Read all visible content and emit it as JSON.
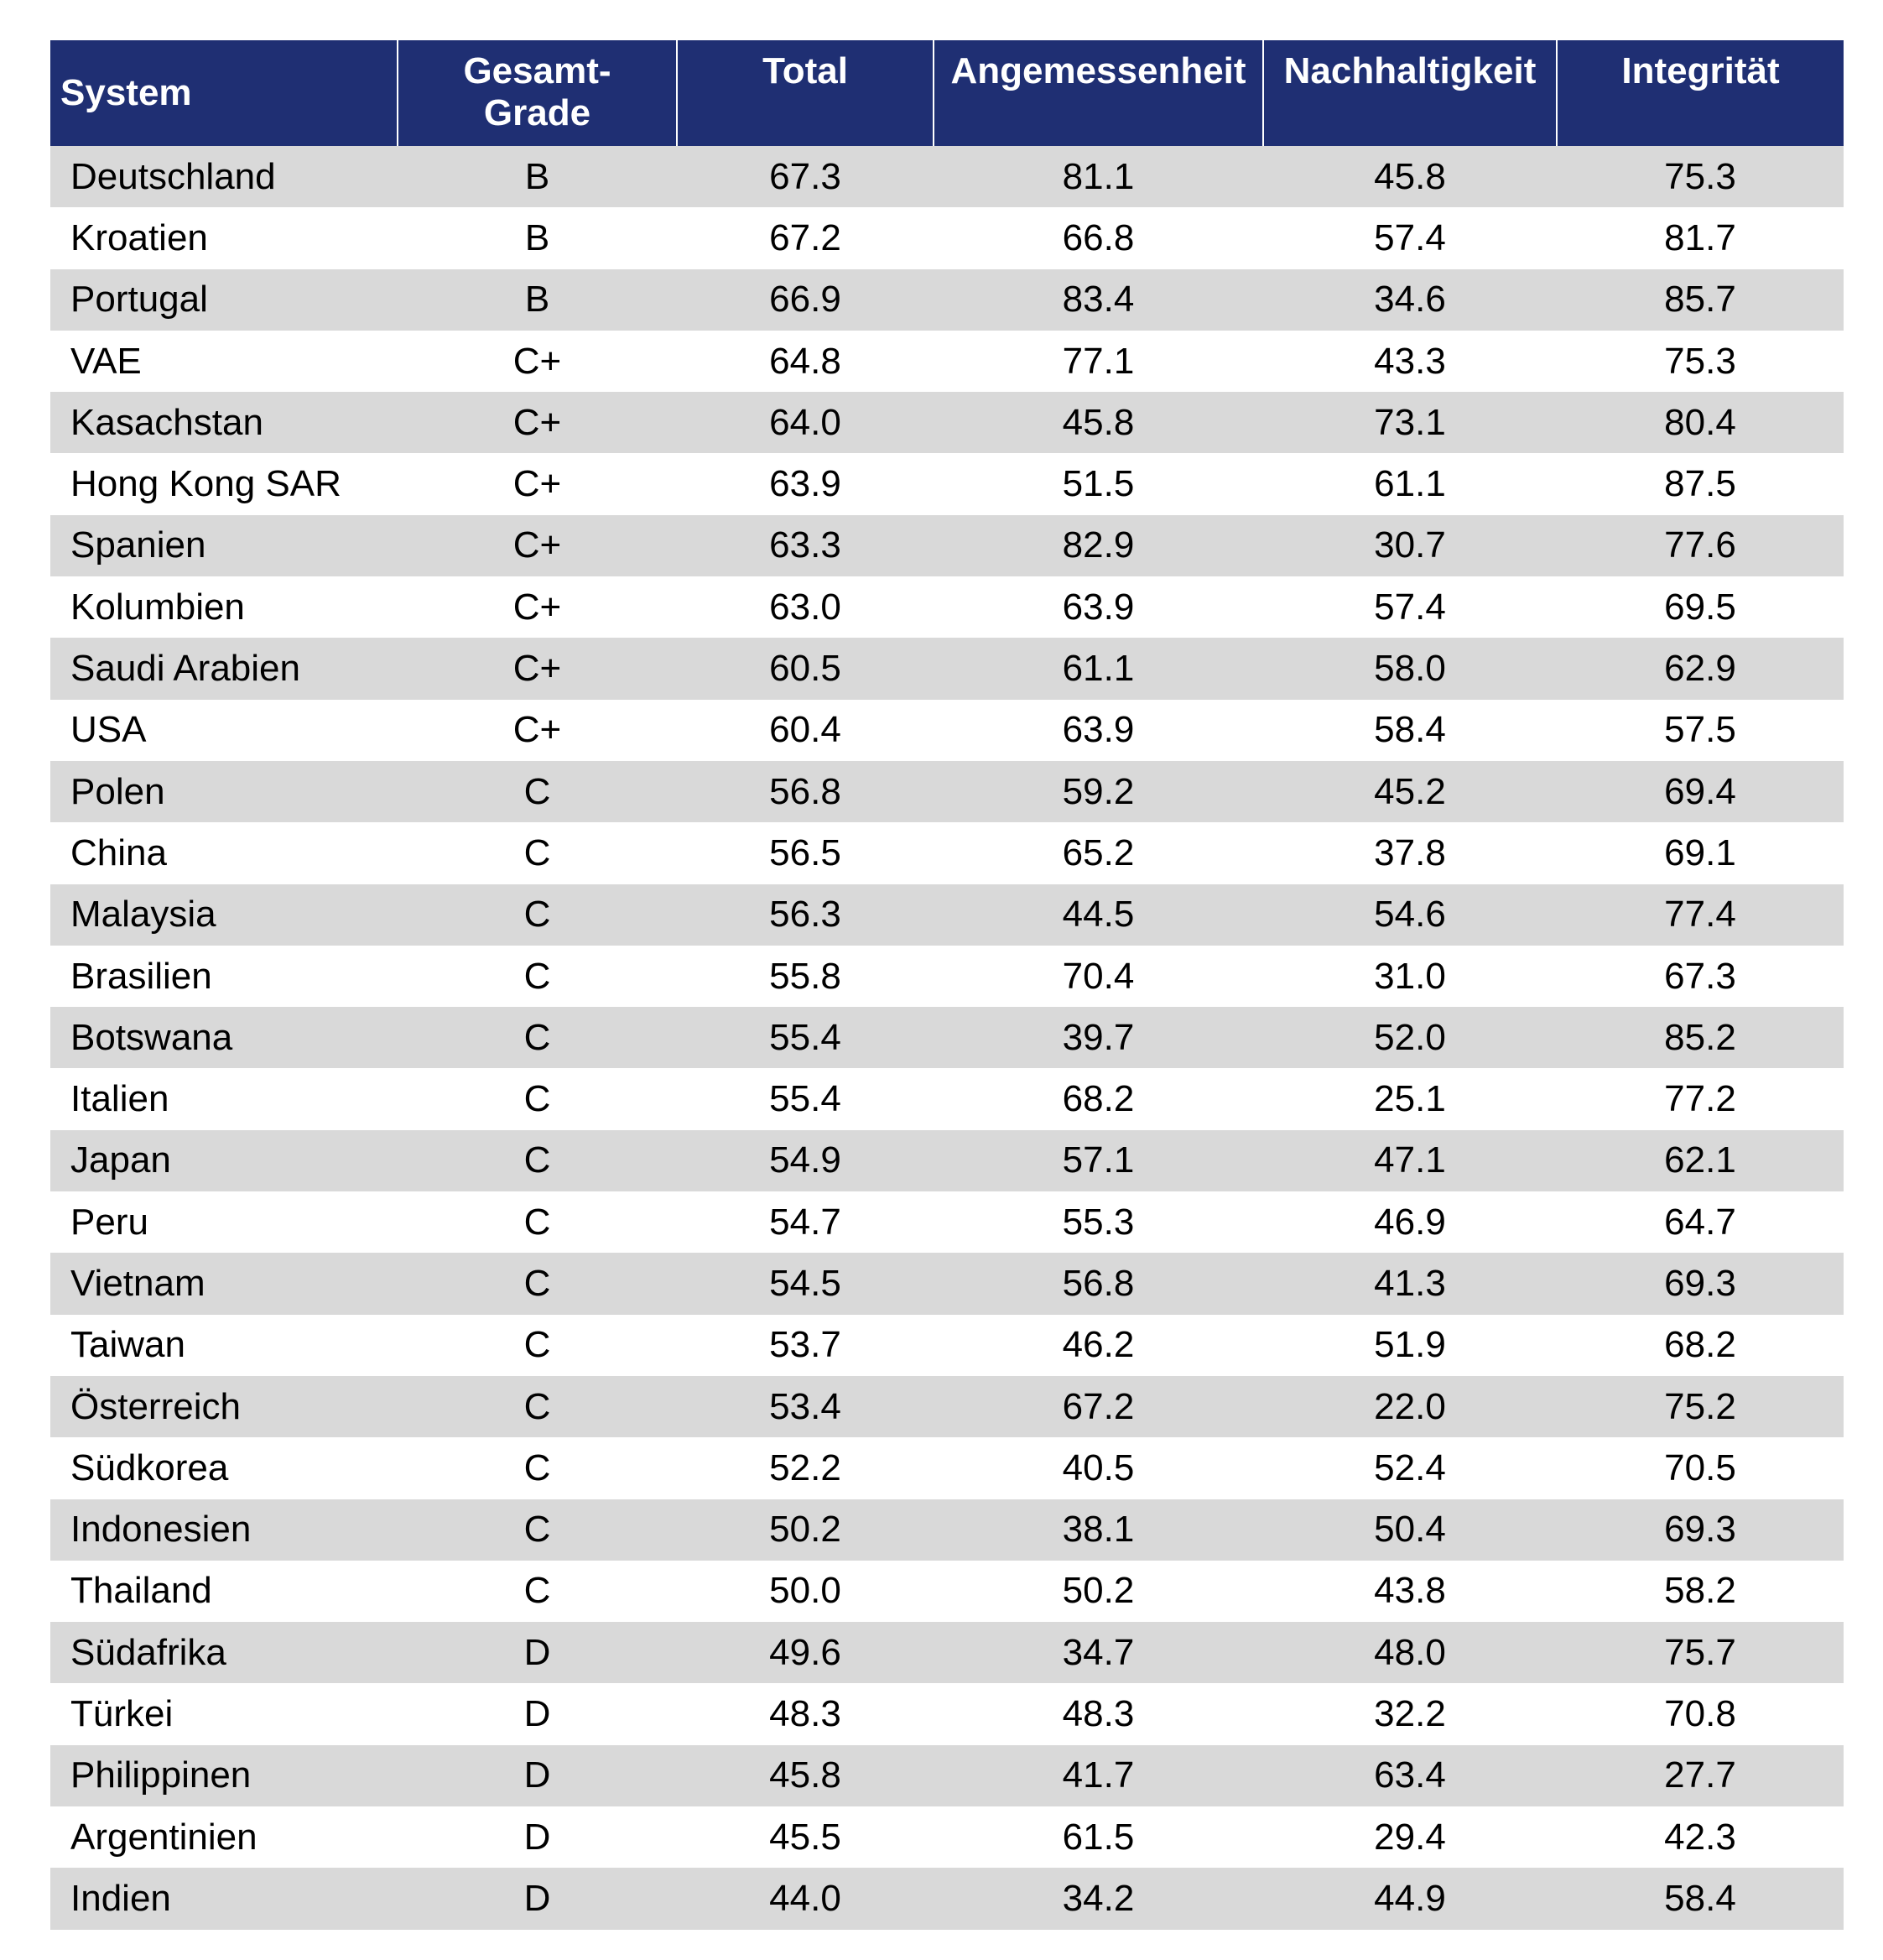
{
  "table": {
    "headers": {
      "system": "System",
      "grade_line1": "Gesamt-",
      "grade_line2": "Grade",
      "total": "Total",
      "angemessenheit": "Angemessenheit",
      "nachhaltigkeit": "Nachhaltigkeit",
      "integritaet": "Integrität"
    },
    "header_color": "#1f2f73",
    "stripe_color": "#d9d9d9",
    "rows": [
      {
        "system": "Deutschland",
        "grade": "B",
        "total": "67.3",
        "angemessenheit": "81.1",
        "nachhaltigkeit": "45.8",
        "integritaet": "75.3"
      },
      {
        "system": "Kroatien",
        "grade": "B",
        "total": "67.2",
        "angemessenheit": "66.8",
        "nachhaltigkeit": "57.4",
        "integritaet": "81.7"
      },
      {
        "system": "Portugal",
        "grade": "B",
        "total": "66.9",
        "angemessenheit": "83.4",
        "nachhaltigkeit": "34.6",
        "integritaet": "85.7"
      },
      {
        "system": "VAE",
        "grade": "C+",
        "total": "64.8",
        "angemessenheit": "77.1",
        "nachhaltigkeit": "43.3",
        "integritaet": "75.3"
      },
      {
        "system": "Kasachstan",
        "grade": "C+",
        "total": "64.0",
        "angemessenheit": "45.8",
        "nachhaltigkeit": "73.1",
        "integritaet": "80.4"
      },
      {
        "system": "Hong Kong SAR",
        "grade": "C+",
        "total": "63.9",
        "angemessenheit": "51.5",
        "nachhaltigkeit": "61.1",
        "integritaet": "87.5"
      },
      {
        "system": "Spanien",
        "grade": "C+",
        "total": "63.3",
        "angemessenheit": "82.9",
        "nachhaltigkeit": "30.7",
        "integritaet": "77.6"
      },
      {
        "system": "Kolumbien",
        "grade": "C+",
        "total": "63.0",
        "angemessenheit": "63.9",
        "nachhaltigkeit": "57.4",
        "integritaet": "69.5"
      },
      {
        "system": "Saudi Arabien",
        "grade": "C+",
        "total": "60.5",
        "angemessenheit": "61.1",
        "nachhaltigkeit": "58.0",
        "integritaet": "62.9"
      },
      {
        "system": "USA",
        "grade": "C+",
        "total": "60.4",
        "angemessenheit": "63.9",
        "nachhaltigkeit": "58.4",
        "integritaet": "57.5"
      },
      {
        "system": "Polen",
        "grade": "C",
        "total": "56.8",
        "angemessenheit": "59.2",
        "nachhaltigkeit": "45.2",
        "integritaet": "69.4"
      },
      {
        "system": "China",
        "grade": "C",
        "total": "56.5",
        "angemessenheit": "65.2",
        "nachhaltigkeit": "37.8",
        "integritaet": "69.1"
      },
      {
        "system": "Malaysia",
        "grade": "C",
        "total": "56.3",
        "angemessenheit": "44.5",
        "nachhaltigkeit": "54.6",
        "integritaet": "77.4"
      },
      {
        "system": "Brasilien",
        "grade": "C",
        "total": "55.8",
        "angemessenheit": "70.4",
        "nachhaltigkeit": "31.0",
        "integritaet": "67.3"
      },
      {
        "system": "Botswana",
        "grade": "C",
        "total": "55.4",
        "angemessenheit": "39.7",
        "nachhaltigkeit": "52.0",
        "integritaet": "85.2"
      },
      {
        "system": "Italien",
        "grade": "C",
        "total": "55.4",
        "angemessenheit": "68.2",
        "nachhaltigkeit": "25.1",
        "integritaet": "77.2"
      },
      {
        "system": "Japan",
        "grade": "C",
        "total": "54.9",
        "angemessenheit": "57.1",
        "nachhaltigkeit": "47.1",
        "integritaet": "62.1"
      },
      {
        "system": "Peru",
        "grade": "C",
        "total": "54.7",
        "angemessenheit": "55.3",
        "nachhaltigkeit": "46.9",
        "integritaet": "64.7"
      },
      {
        "system": "Vietnam",
        "grade": "C",
        "total": "54.5",
        "angemessenheit": "56.8",
        "nachhaltigkeit": "41.3",
        "integritaet": "69.3"
      },
      {
        "system": "Taiwan",
        "grade": "C",
        "total": "53.7",
        "angemessenheit": "46.2",
        "nachhaltigkeit": "51.9",
        "integritaet": "68.2"
      },
      {
        "system": "Österreich",
        "grade": "C",
        "total": "53.4",
        "angemessenheit": "67.2",
        "nachhaltigkeit": "22.0",
        "integritaet": "75.2"
      },
      {
        "system": "Südkorea",
        "grade": "C",
        "total": "52.2",
        "angemessenheit": "40.5",
        "nachhaltigkeit": "52.4",
        "integritaet": "70.5"
      },
      {
        "system": "Indonesien",
        "grade": "C",
        "total": "50.2",
        "angemessenheit": "38.1",
        "nachhaltigkeit": "50.4",
        "integritaet": "69.3"
      },
      {
        "system": "Thailand",
        "grade": "C",
        "total": "50.0",
        "angemessenheit": "50.2",
        "nachhaltigkeit": "43.8",
        "integritaet": "58.2"
      },
      {
        "system": "Südafrika",
        "grade": "D",
        "total": "49.6",
        "angemessenheit": "34.7",
        "nachhaltigkeit": "48.0",
        "integritaet": "75.7"
      },
      {
        "system": "Türkei",
        "grade": "D",
        "total": "48.3",
        "angemessenheit": "48.3",
        "nachhaltigkeit": "32.2",
        "integritaet": "70.8"
      },
      {
        "system": "Philippinen",
        "grade": "D",
        "total": "45.8",
        "angemessenheit": "41.7",
        "nachhaltigkeit": "63.4",
        "integritaet": "27.7"
      },
      {
        "system": "Argentinien",
        "grade": "D",
        "total": "45.5",
        "angemessenheit": "61.5",
        "nachhaltigkeit": "29.4",
        "integritaet": "42.3"
      },
      {
        "system": "Indien",
        "grade": "D",
        "total": "44.0",
        "angemessenheit": "34.2",
        "nachhaltigkeit": "44.9",
        "integritaet": "58.4"
      }
    ]
  }
}
